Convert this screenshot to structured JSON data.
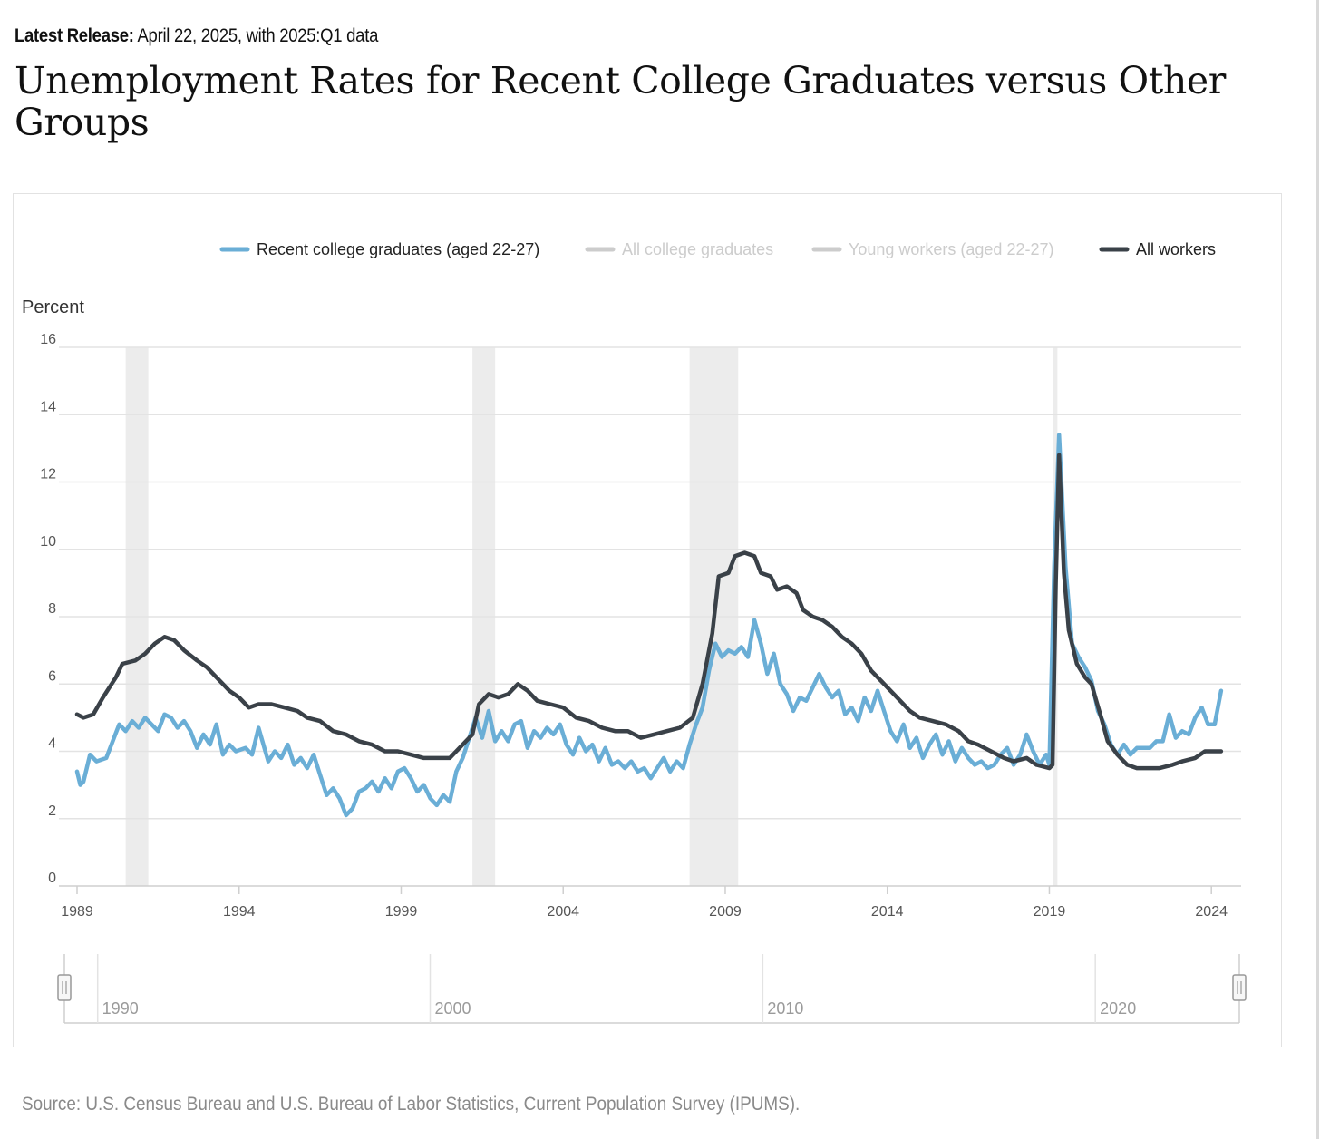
{
  "header": {
    "release_label": "Latest Release:",
    "release_text": "April 22, 2025, with 2025:Q1 data",
    "title": "Unemployment Rates for Recent College Graduates versus Other Groups"
  },
  "footer": {
    "source": "Source: U.S. Census Bureau and U.S. Bureau of Labor Statistics, Current Population Survey (IPUMS)."
  },
  "navigator": {
    "labels": [
      "1990",
      "2000",
      "2010",
      "2020"
    ]
  },
  "chart_data": {
    "type": "line",
    "title": "Unemployment Rates for Recent College Graduates versus Other Groups",
    "ylabel": "Percent",
    "ylim": [
      0,
      16
    ],
    "xlim": [
      1989,
      2024.7
    ],
    "yticks": [
      0,
      2,
      4,
      6,
      8,
      10,
      12,
      14,
      16
    ],
    "xticks": [
      1989,
      1994,
      1999,
      2004,
      2009,
      2014,
      2019,
      2024
    ],
    "grid": "horizontal",
    "legend_position": "top",
    "recessions": [
      [
        1990.5,
        1991.2
      ],
      [
        2001.2,
        2001.9
      ],
      [
        2007.9,
        2009.4
      ],
      [
        2019.1,
        2019.25
      ]
    ],
    "legend": [
      {
        "name": "Recent college graduates (aged 22-27)",
        "color": "#6aaed6",
        "visible": true
      },
      {
        "name": "All college graduates",
        "color": "#cccccc",
        "visible": false
      },
      {
        "name": "Young workers (aged 22-27)",
        "color": "#cccccc",
        "visible": false
      },
      {
        "name": "All workers",
        "color": "#3a4148",
        "visible": true
      }
    ],
    "series": [
      {
        "name": "Recent college graduates (aged 22-27)",
        "color": "#6aaed6",
        "points": [
          [
            1989.0,
            3.4
          ],
          [
            1989.1,
            3.0
          ],
          [
            1989.2,
            3.1
          ],
          [
            1989.4,
            3.9
          ],
          [
            1989.6,
            3.7
          ],
          [
            1989.9,
            3.8
          ],
          [
            1990.1,
            4.3
          ],
          [
            1990.3,
            4.8
          ],
          [
            1990.5,
            4.6
          ],
          [
            1990.7,
            4.9
          ],
          [
            1990.9,
            4.7
          ],
          [
            1991.1,
            5.0
          ],
          [
            1991.3,
            4.8
          ],
          [
            1991.5,
            4.6
          ],
          [
            1991.7,
            5.1
          ],
          [
            1991.9,
            5.0
          ],
          [
            1992.1,
            4.7
          ],
          [
            1992.3,
            4.9
          ],
          [
            1992.5,
            4.6
          ],
          [
            1992.7,
            4.1
          ],
          [
            1992.9,
            4.5
          ],
          [
            1993.1,
            4.2
          ],
          [
            1993.3,
            4.8
          ],
          [
            1993.5,
            3.9
          ],
          [
            1993.7,
            4.2
          ],
          [
            1993.9,
            4.0
          ],
          [
            1994.2,
            4.1
          ],
          [
            1994.4,
            3.9
          ],
          [
            1994.6,
            4.7
          ],
          [
            1994.9,
            3.7
          ],
          [
            1995.1,
            4.0
          ],
          [
            1995.3,
            3.8
          ],
          [
            1995.5,
            4.2
          ],
          [
            1995.7,
            3.6
          ],
          [
            1995.9,
            3.8
          ],
          [
            1996.1,
            3.5
          ],
          [
            1996.3,
            3.9
          ],
          [
            1996.5,
            3.3
          ],
          [
            1996.7,
            2.7
          ],
          [
            1996.9,
            2.9
          ],
          [
            1997.1,
            2.6
          ],
          [
            1997.3,
            2.1
          ],
          [
            1997.5,
            2.3
          ],
          [
            1997.7,
            2.8
          ],
          [
            1997.9,
            2.9
          ],
          [
            1998.1,
            3.1
          ],
          [
            1998.3,
            2.8
          ],
          [
            1998.5,
            3.2
          ],
          [
            1998.7,
            2.9
          ],
          [
            1998.9,
            3.4
          ],
          [
            1999.1,
            3.5
          ],
          [
            1999.3,
            3.2
          ],
          [
            1999.5,
            2.8
          ],
          [
            1999.7,
            3.0
          ],
          [
            1999.9,
            2.6
          ],
          [
            2000.1,
            2.4
          ],
          [
            2000.3,
            2.7
          ],
          [
            2000.5,
            2.5
          ],
          [
            2000.7,
            3.4
          ],
          [
            2000.9,
            3.8
          ],
          [
            2001.1,
            4.4
          ],
          [
            2001.3,
            5.0
          ],
          [
            2001.5,
            4.4
          ],
          [
            2001.7,
            5.2
          ],
          [
            2001.9,
            4.3
          ],
          [
            2002.1,
            4.6
          ],
          [
            2002.3,
            4.3
          ],
          [
            2002.5,
            4.8
          ],
          [
            2002.7,
            4.9
          ],
          [
            2002.9,
            4.1
          ],
          [
            2003.1,
            4.6
          ],
          [
            2003.3,
            4.4
          ],
          [
            2003.5,
            4.7
          ],
          [
            2003.7,
            4.5
          ],
          [
            2003.9,
            4.8
          ],
          [
            2004.1,
            4.2
          ],
          [
            2004.3,
            3.9
          ],
          [
            2004.5,
            4.4
          ],
          [
            2004.7,
            4.0
          ],
          [
            2004.9,
            4.2
          ],
          [
            2005.1,
            3.7
          ],
          [
            2005.3,
            4.1
          ],
          [
            2005.5,
            3.6
          ],
          [
            2005.7,
            3.7
          ],
          [
            2005.9,
            3.5
          ],
          [
            2006.1,
            3.7
          ],
          [
            2006.3,
            3.4
          ],
          [
            2006.5,
            3.5
          ],
          [
            2006.7,
            3.2
          ],
          [
            2006.9,
            3.5
          ],
          [
            2007.1,
            3.8
          ],
          [
            2007.3,
            3.4
          ],
          [
            2007.5,
            3.7
          ],
          [
            2007.7,
            3.5
          ],
          [
            2007.9,
            4.2
          ],
          [
            2008.1,
            4.8
          ],
          [
            2008.3,
            5.3
          ],
          [
            2008.5,
            6.4
          ],
          [
            2008.7,
            7.2
          ],
          [
            2008.9,
            6.8
          ],
          [
            2009.1,
            7.0
          ],
          [
            2009.3,
            6.9
          ],
          [
            2009.5,
            7.1
          ],
          [
            2009.7,
            6.8
          ],
          [
            2009.9,
            7.9
          ],
          [
            2010.1,
            7.2
          ],
          [
            2010.3,
            6.3
          ],
          [
            2010.5,
            6.9
          ],
          [
            2010.7,
            6.0
          ],
          [
            2010.9,
            5.7
          ],
          [
            2011.1,
            5.2
          ],
          [
            2011.3,
            5.6
          ],
          [
            2011.5,
            5.5
          ],
          [
            2011.7,
            5.9
          ],
          [
            2011.9,
            6.3
          ],
          [
            2012.1,
            5.9
          ],
          [
            2012.3,
            5.6
          ],
          [
            2012.5,
            5.8
          ],
          [
            2012.7,
            5.1
          ],
          [
            2012.9,
            5.3
          ],
          [
            2013.1,
            4.9
          ],
          [
            2013.3,
            5.6
          ],
          [
            2013.5,
            5.2
          ],
          [
            2013.7,
            5.8
          ],
          [
            2013.9,
            5.2
          ],
          [
            2014.1,
            4.6
          ],
          [
            2014.3,
            4.3
          ],
          [
            2014.5,
            4.8
          ],
          [
            2014.7,
            4.1
          ],
          [
            2014.9,
            4.4
          ],
          [
            2015.1,
            3.8
          ],
          [
            2015.3,
            4.2
          ],
          [
            2015.5,
            4.5
          ],
          [
            2015.7,
            3.9
          ],
          [
            2015.9,
            4.3
          ],
          [
            2016.1,
            3.7
          ],
          [
            2016.3,
            4.1
          ],
          [
            2016.5,
            3.8
          ],
          [
            2016.7,
            3.6
          ],
          [
            2016.9,
            3.7
          ],
          [
            2017.1,
            3.5
          ],
          [
            2017.3,
            3.6
          ],
          [
            2017.5,
            3.9
          ],
          [
            2017.7,
            4.1
          ],
          [
            2017.9,
            3.6
          ],
          [
            2018.1,
            3.9
          ],
          [
            2018.3,
            4.5
          ],
          [
            2018.5,
            4.0
          ],
          [
            2018.7,
            3.6
          ],
          [
            2018.9,
            3.9
          ],
          [
            2019.0,
            3.6
          ],
          [
            2019.15,
            9.5
          ],
          [
            2019.3,
            13.4
          ],
          [
            2019.5,
            9.5
          ],
          [
            2019.7,
            7.2
          ],
          [
            2019.9,
            6.8
          ],
          [
            2020.1,
            6.5
          ],
          [
            2020.3,
            6.1
          ],
          [
            2020.5,
            5.2
          ],
          [
            2020.7,
            4.8
          ],
          [
            2020.9,
            4.2
          ],
          [
            2021.1,
            3.9
          ],
          [
            2021.3,
            4.2
          ],
          [
            2021.5,
            3.9
          ],
          [
            2021.7,
            4.1
          ],
          [
            2021.9,
            4.1
          ],
          [
            2022.1,
            4.1
          ],
          [
            2022.3,
            4.3
          ],
          [
            2022.5,
            4.3
          ],
          [
            2022.7,
            5.1
          ],
          [
            2022.9,
            4.4
          ],
          [
            2023.1,
            4.6
          ],
          [
            2023.3,
            4.5
          ],
          [
            2023.5,
            5.0
          ],
          [
            2023.7,
            5.3
          ],
          [
            2023.9,
            4.8
          ],
          [
            2024.1,
            4.8
          ],
          [
            2024.3,
            5.8
          ]
        ]
      },
      {
        "name": "All workers",
        "color": "#3a4148",
        "points": [
          [
            1989.0,
            5.1
          ],
          [
            1989.2,
            5.0
          ],
          [
            1989.5,
            5.1
          ],
          [
            1989.8,
            5.6
          ],
          [
            1990.2,
            6.2
          ],
          [
            1990.4,
            6.6
          ],
          [
            1990.8,
            6.7
          ],
          [
            1991.1,
            6.9
          ],
          [
            1991.4,
            7.2
          ],
          [
            1991.7,
            7.4
          ],
          [
            1992.0,
            7.3
          ],
          [
            1992.3,
            7.0
          ],
          [
            1992.7,
            6.7
          ],
          [
            1993.0,
            6.5
          ],
          [
            1993.3,
            6.2
          ],
          [
            1993.7,
            5.8
          ],
          [
            1994.0,
            5.6
          ],
          [
            1994.3,
            5.3
          ],
          [
            1994.6,
            5.4
          ],
          [
            1995.0,
            5.4
          ],
          [
            1995.4,
            5.3
          ],
          [
            1995.8,
            5.2
          ],
          [
            1996.1,
            5.0
          ],
          [
            1996.5,
            4.9
          ],
          [
            1996.9,
            4.6
          ],
          [
            1997.3,
            4.5
          ],
          [
            1997.7,
            4.3
          ],
          [
            1998.1,
            4.2
          ],
          [
            1998.5,
            4.0
          ],
          [
            1998.9,
            4.0
          ],
          [
            1999.3,
            3.9
          ],
          [
            1999.7,
            3.8
          ],
          [
            2000.1,
            3.8
          ],
          [
            2000.5,
            3.8
          ],
          [
            2000.9,
            4.2
          ],
          [
            2001.2,
            4.5
          ],
          [
            2001.4,
            5.4
          ],
          [
            2001.7,
            5.7
          ],
          [
            2002.0,
            5.6
          ],
          [
            2002.3,
            5.7
          ],
          [
            2002.6,
            6.0
          ],
          [
            2002.9,
            5.8
          ],
          [
            2003.2,
            5.5
          ],
          [
            2003.6,
            5.4
          ],
          [
            2004.0,
            5.3
          ],
          [
            2004.4,
            5.0
          ],
          [
            2004.8,
            4.9
          ],
          [
            2005.2,
            4.7
          ],
          [
            2005.6,
            4.6
          ],
          [
            2006.0,
            4.6
          ],
          [
            2006.4,
            4.4
          ],
          [
            2006.8,
            4.5
          ],
          [
            2007.2,
            4.6
          ],
          [
            2007.6,
            4.7
          ],
          [
            2008.0,
            5.0
          ],
          [
            2008.3,
            6.0
          ],
          [
            2008.6,
            7.5
          ],
          [
            2008.8,
            9.2
          ],
          [
            2009.1,
            9.3
          ],
          [
            2009.3,
            9.8
          ],
          [
            2009.6,
            9.9
          ],
          [
            2009.9,
            9.8
          ],
          [
            2010.1,
            9.3
          ],
          [
            2010.4,
            9.2
          ],
          [
            2010.6,
            8.8
          ],
          [
            2010.9,
            8.9
          ],
          [
            2011.2,
            8.7
          ],
          [
            2011.4,
            8.2
          ],
          [
            2011.7,
            8.0
          ],
          [
            2012.0,
            7.9
          ],
          [
            2012.3,
            7.7
          ],
          [
            2012.6,
            7.4
          ],
          [
            2012.9,
            7.2
          ],
          [
            2013.2,
            6.9
          ],
          [
            2013.5,
            6.4
          ],
          [
            2013.8,
            6.1
          ],
          [
            2014.1,
            5.8
          ],
          [
            2014.4,
            5.5
          ],
          [
            2014.7,
            5.2
          ],
          [
            2015.0,
            5.0
          ],
          [
            2015.4,
            4.9
          ],
          [
            2015.8,
            4.8
          ],
          [
            2016.2,
            4.6
          ],
          [
            2016.5,
            4.3
          ],
          [
            2016.8,
            4.2
          ],
          [
            2017.2,
            4.0
          ],
          [
            2017.6,
            3.8
          ],
          [
            2017.9,
            3.7
          ],
          [
            2018.3,
            3.8
          ],
          [
            2018.6,
            3.6
          ],
          [
            2019.0,
            3.5
          ],
          [
            2019.1,
            3.6
          ],
          [
            2019.2,
            9.0
          ],
          [
            2019.3,
            12.8
          ],
          [
            2019.45,
            9.3
          ],
          [
            2019.6,
            7.6
          ],
          [
            2019.85,
            6.6
          ],
          [
            2020.1,
            6.2
          ],
          [
            2020.3,
            6.0
          ],
          [
            2020.6,
            5.0
          ],
          [
            2020.8,
            4.3
          ],
          [
            2021.1,
            3.9
          ],
          [
            2021.4,
            3.6
          ],
          [
            2021.7,
            3.5
          ],
          [
            2022.0,
            3.5
          ],
          [
            2022.4,
            3.5
          ],
          [
            2022.8,
            3.6
          ],
          [
            2023.1,
            3.7
          ],
          [
            2023.5,
            3.8
          ],
          [
            2023.8,
            4.0
          ],
          [
            2024.1,
            4.0
          ],
          [
            2024.3,
            4.0
          ]
        ]
      }
    ]
  }
}
